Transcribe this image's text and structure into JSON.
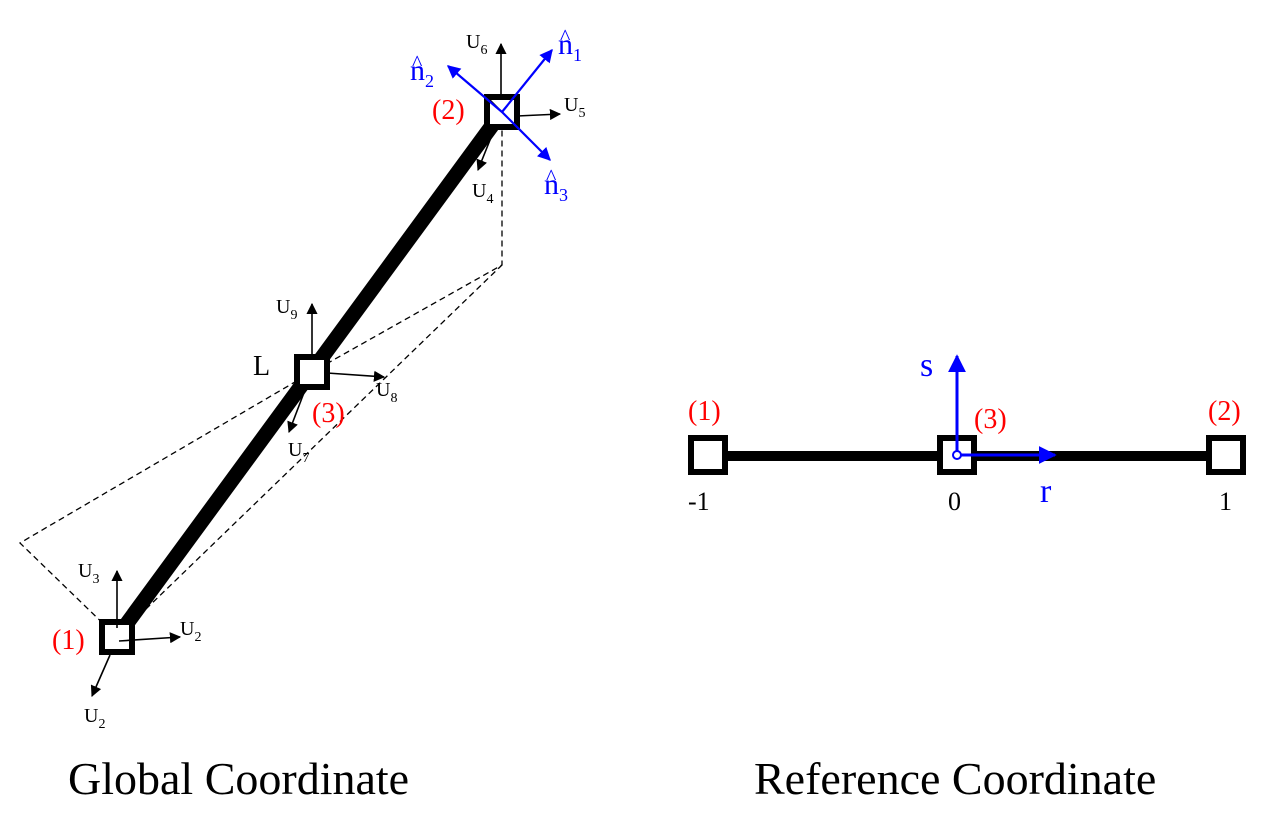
{
  "colors": {
    "node_label": "#ff0000",
    "local_axes": "#0000ff",
    "line": "#000000"
  },
  "global": {
    "caption": "Global Coordinate",
    "length_label": "L",
    "node_labels": [
      "(1)",
      "(2)",
      "(3)"
    ],
    "dof_base": "U",
    "dofs": {
      "n1_right": "2",
      "n1_down": "2",
      "n1_up": "3",
      "n2_down": "4",
      "n2_right": "5",
      "n2_up": "6",
      "n3_down": "7",
      "n3_right": "8",
      "n3_up": "9"
    },
    "normal_base": "n",
    "normal_hat": "^",
    "normals": [
      "1",
      "2",
      "3"
    ]
  },
  "reference": {
    "caption": "Reference Coordinate",
    "node_labels": [
      "(1)",
      "(3)",
      "(2)"
    ],
    "ticks": [
      "-1",
      "0",
      "1"
    ],
    "axis_r": "r",
    "axis_s": "s"
  }
}
